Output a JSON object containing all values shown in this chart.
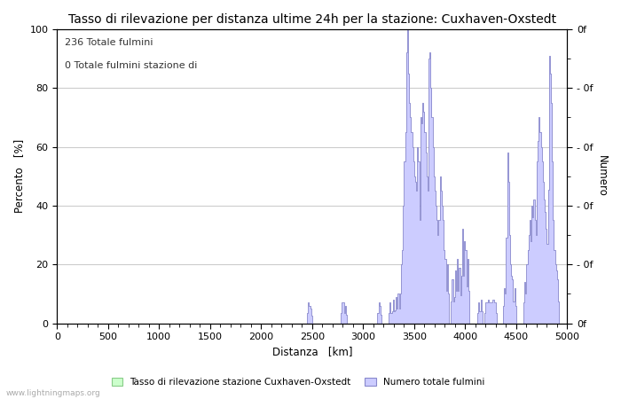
{
  "title": "Tasso di rilevazione per distanza ultime 24h per la stazione: Cuxhaven-Oxstedt",
  "xlabel": "Distanza   [km]",
  "ylabel_left": "Percento   [%]",
  "ylabel_right": "Numero",
  "annotation_line1": "236 Totale fulmini",
  "annotation_line2": "0 Totale fulmini stazione di",
  "xlim": [
    0,
    5000
  ],
  "ylim": [
    0,
    100
  ],
  "xticks": [
    0,
    500,
    1000,
    1500,
    2000,
    2500,
    3000,
    3500,
    4000,
    4500,
    5000
  ],
  "yticks_left": [
    0,
    20,
    40,
    60,
    80,
    100
  ],
  "right_axis_yticks": [
    0,
    20,
    40,
    60,
    80,
    100
  ],
  "right_axis_labels": [
    "0f",
    "- 0f",
    "- 0f",
    "- 0f",
    "- 0f",
    "- 0f"
  ],
  "legend_label_green": "Tasso di rilevazione stazione Cuxhaven-Oxstedt",
  "legend_label_blue": "Numero totale fulmini",
  "color_blue_fill": "#ccccff",
  "color_blue_line": "#8888cc",
  "color_green_fill": "#ccffcc",
  "color_green_line": "#88cc88",
  "bg_color": "#ffffff",
  "grid_color": "#cccccc",
  "watermark": "www.lightningmaps.org",
  "title_fontsize": 10,
  "label_fontsize": 8.5,
  "tick_fontsize": 8,
  "annot_fontsize": 8
}
